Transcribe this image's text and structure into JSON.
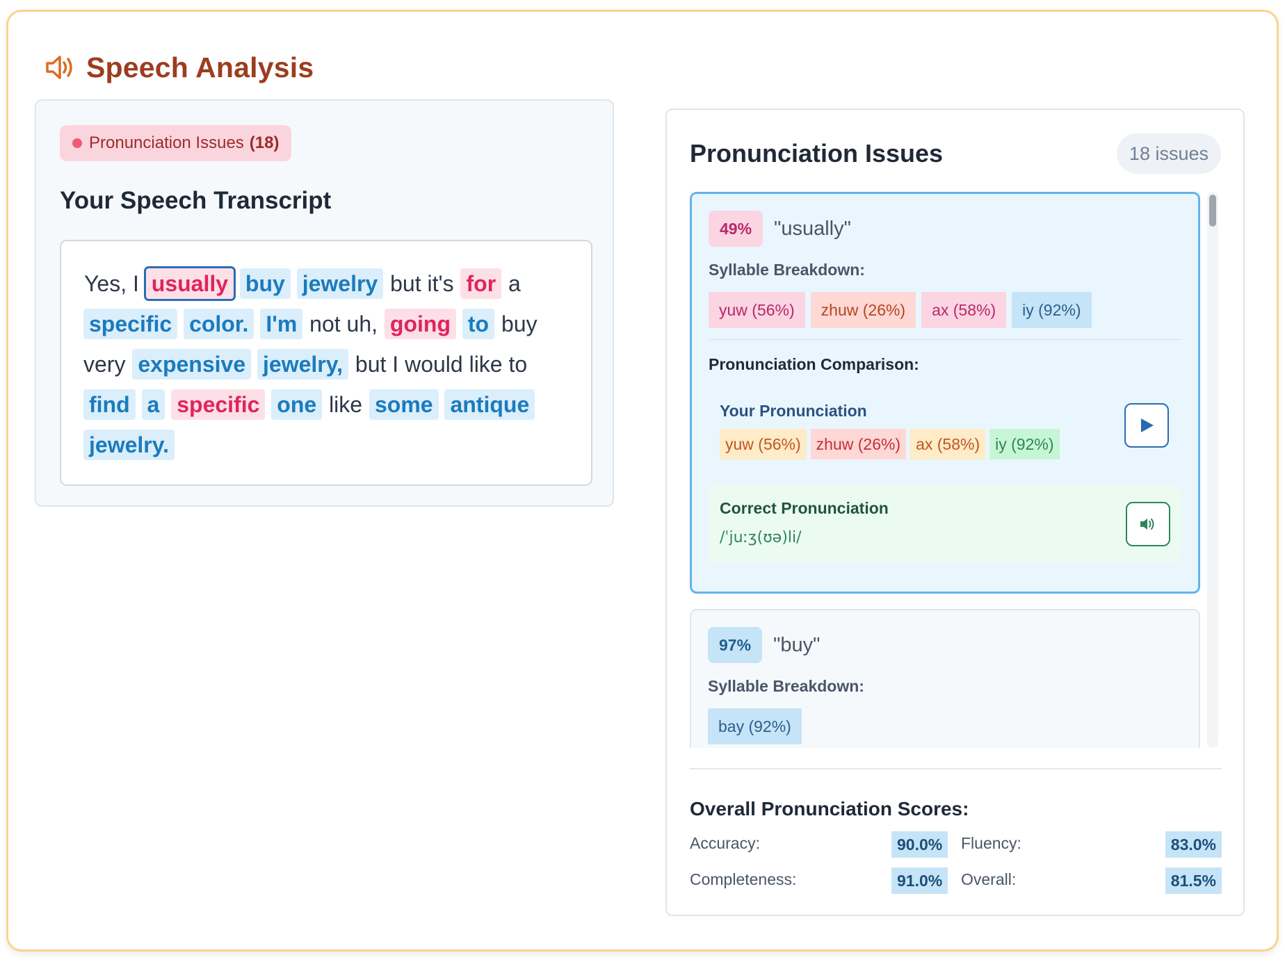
{
  "app": {
    "title": "Speech Analysis",
    "icon": "speaker-icon",
    "accent_color": "#9c3d1f"
  },
  "left": {
    "issues_pill": {
      "label": "Pronunciation Issues",
      "count": "(18)"
    },
    "transcript_title": "Your Speech Transcript",
    "transcript": [
      {
        "text": "Yes, I",
        "status": "plain"
      },
      {
        "text": "usually",
        "status": "bad",
        "selected": true
      },
      {
        "text": "buy",
        "status": "good"
      },
      {
        "text": "jewelry",
        "status": "good"
      },
      {
        "text": "but it's",
        "status": "plain"
      },
      {
        "text": "for",
        "status": "bad"
      },
      {
        "text": "a",
        "status": "plain"
      },
      {
        "text": "specific",
        "status": "good"
      },
      {
        "text": "color.",
        "status": "good"
      },
      {
        "text": "I'm",
        "status": "good"
      },
      {
        "text": "not uh,",
        "status": "plain"
      },
      {
        "text": "going",
        "status": "bad"
      },
      {
        "text": "to",
        "status": "good"
      },
      {
        "text": "buy very",
        "status": "plain"
      },
      {
        "text": "expensive",
        "status": "good"
      },
      {
        "text": "jewelry,",
        "status": "good"
      },
      {
        "text": "but I would like to",
        "status": "plain"
      },
      {
        "text": "find",
        "status": "good"
      },
      {
        "text": "a",
        "status": "good"
      },
      {
        "text": "specific",
        "status": "bad"
      },
      {
        "text": "one",
        "status": "good"
      },
      {
        "text": "like",
        "status": "plain"
      },
      {
        "text": "some",
        "status": "good"
      },
      {
        "text": "antique",
        "status": "good"
      },
      {
        "text": "jewelry.",
        "status": "good"
      }
    ]
  },
  "right": {
    "title": "Pronunciation Issues",
    "count_badge": "18 issues",
    "issues": [
      {
        "score": "49%",
        "word": "\"usually\"",
        "syllable_label": "Syllable Breakdown:",
        "syllables": [
          "yuw (56%)",
          "zhuw (26%)",
          "ax (58%)",
          "iy (92%)"
        ],
        "comparison_label": "Pronunciation Comparison:",
        "your_label": "Your Pronunciation",
        "your_syllables": [
          "yuw (56%)",
          "zhuw (26%)",
          "ax (58%)",
          "iy (92%)"
        ],
        "correct_label": "Correct Pronunciation",
        "correct_ipa": "/ˈjuːʒ(ʊə)li/"
      },
      {
        "score": "97%",
        "word": "\"buy\"",
        "syllable_label": "Syllable Breakdown:",
        "syllables": [
          "bay (92%)"
        ]
      }
    ],
    "scores_title": "Overall Pronunciation Scores:",
    "scores": {
      "accuracy_label": "Accuracy:",
      "accuracy": "90.0%",
      "fluency_label": "Fluency:",
      "fluency": "83.0%",
      "completeness_label": "Completeness:",
      "completeness": "91.0%",
      "overall_label": "Overall:",
      "overall": "81.5%"
    }
  }
}
